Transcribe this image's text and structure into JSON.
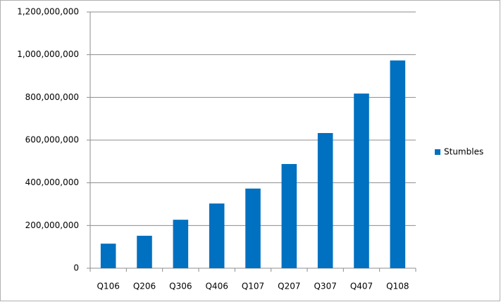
{
  "chart_data": {
    "type": "bar",
    "categories": [
      "Q106",
      "Q206",
      "Q306",
      "Q406",
      "Q107",
      "Q207",
      "Q307",
      "Q407",
      "Q108"
    ],
    "series": [
      {
        "name": "Stumbles",
        "color": "#0070c0",
        "values": [
          115000000,
          152000000,
          227000000,
          303000000,
          373000000,
          488000000,
          633000000,
          818000000,
          973000000
        ]
      }
    ],
    "ylim": [
      0,
      1200000000
    ],
    "yticks": [
      0,
      {
        "value": 200000000,
        "label": "200,000,000"
      },
      {
        "value": 400000000,
        "label": "400,000,000"
      },
      {
        "value": 600000000,
        "label": "600,000,000"
      },
      {
        "value": 800000000,
        "label": "800,000,000"
      },
      {
        "value": 1000000000,
        "label": "1,000,000,000"
      },
      {
        "value": 1200000000,
        "label": "1,200,000,000"
      }
    ],
    "grid": true,
    "legend": "right"
  }
}
